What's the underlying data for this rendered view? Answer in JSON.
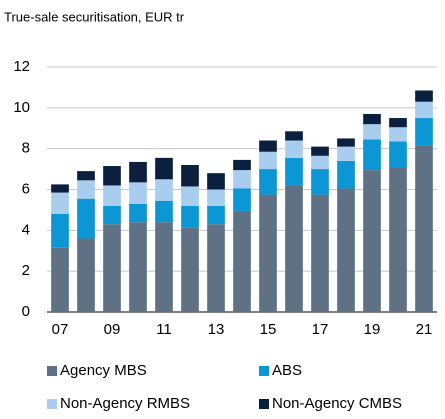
{
  "chart_data": {
    "type": "stacked_bar",
    "title": "True-sale securitisation, EUR tr",
    "categories": [
      "07",
      null,
      "09",
      null,
      "11",
      null,
      "13",
      null,
      "15",
      null,
      "17",
      null,
      "19",
      null,
      "21"
    ],
    "series": [
      {
        "name": "Agency MBS",
        "color": "#5f7184",
        "values": [
          3.15,
          3.6,
          4.3,
          4.4,
          4.4,
          4.15,
          4.3,
          4.95,
          5.75,
          6.2,
          5.75,
          6.05,
          6.95,
          7.1,
          8.15
        ]
      },
      {
        "name": "ABS",
        "color": "#0c96d4",
        "values": [
          1.65,
          1.95,
          0.9,
          0.9,
          1.05,
          1.05,
          0.9,
          1.1,
          1.25,
          1.35,
          1.25,
          1.35,
          1.5,
          1.25,
          1.35
        ]
      },
      {
        "name": "Non-Agency RMBS",
        "color": "#a9cdee",
        "values": [
          1.05,
          0.9,
          1.0,
          1.05,
          1.05,
          0.95,
          0.8,
          0.9,
          0.85,
          0.85,
          0.65,
          0.7,
          0.75,
          0.7,
          0.8
        ]
      },
      {
        "name": "Non-Agency CMBS",
        "color": "#0b1f3f",
        "values": [
          0.4,
          0.45,
          0.95,
          1.0,
          1.05,
          1.05,
          0.8,
          0.5,
          0.55,
          0.45,
          0.45,
          0.4,
          0.5,
          0.45,
          0.55
        ]
      }
    ],
    "ylim": [
      0,
      12
    ],
    "yticks": [
      0,
      2,
      4,
      6,
      8,
      10,
      12
    ],
    "grid": true
  }
}
